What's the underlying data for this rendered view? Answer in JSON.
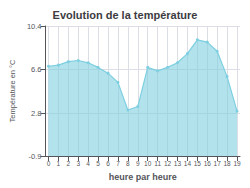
{
  "chart_data": {
    "type": "line",
    "title": "Evolution de la température",
    "xlabel": "heure par heure",
    "ylabel": "Température en °C",
    "x": [
      0,
      1,
      2,
      3,
      4,
      5,
      6,
      7,
      8,
      9,
      10,
      11,
      12,
      13,
      14,
      15,
      16,
      17,
      18,
      19
    ],
    "values": [
      6.9,
      7.0,
      7.3,
      7.4,
      7.2,
      6.8,
      6.3,
      5.5,
      3.1,
      3.4,
      6.8,
      6.5,
      6.8,
      7.2,
      8.0,
      9.2,
      9.0,
      8.2,
      6.0,
      3.0
    ],
    "xlim": [
      -0.3,
      19.3
    ],
    "xticks": [
      0,
      1,
      2,
      3,
      4,
      5,
      6,
      7,
      8,
      9,
      10,
      11,
      12,
      13,
      14,
      15,
      16,
      17,
      18,
      19
    ],
    "ylim": [
      -0.9,
      10.4
    ],
    "yticks": [
      -0.9,
      2.8,
      6.6,
      10.4
    ],
    "grid": true,
    "color": "#7ecfe0",
    "marker": "circle"
  }
}
